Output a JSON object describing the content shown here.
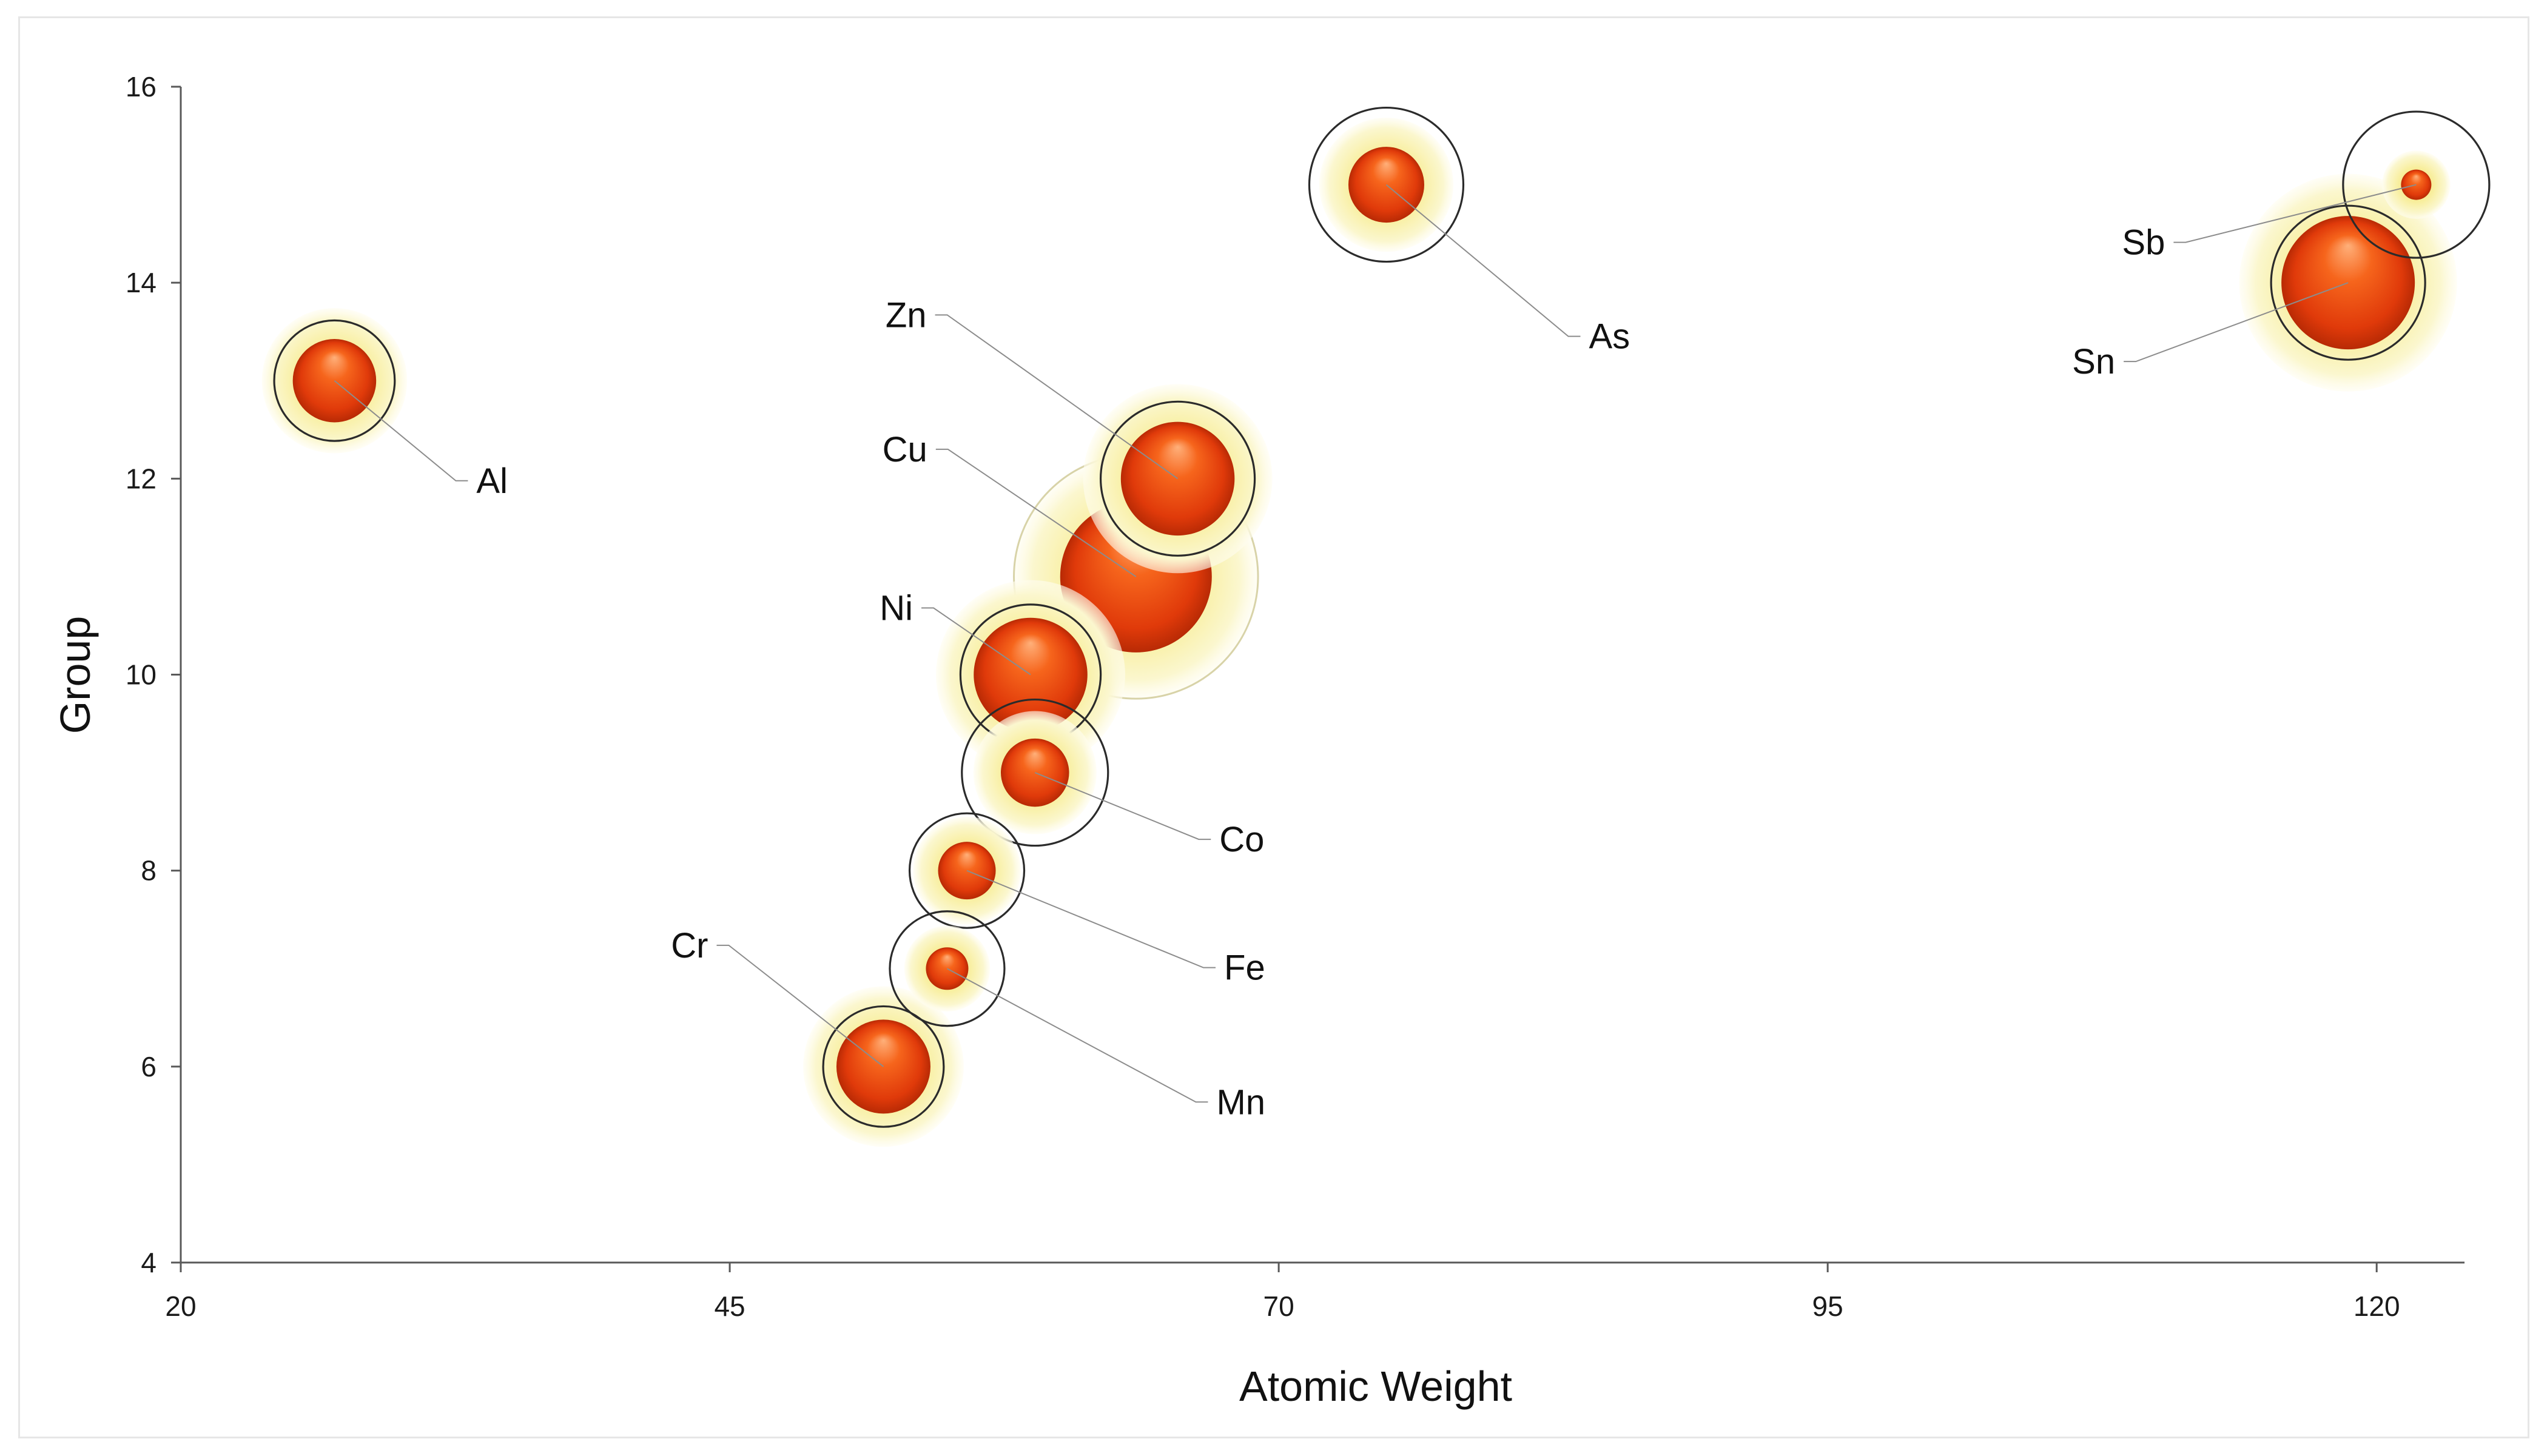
{
  "chart_data": {
    "type": "bubble",
    "title": "",
    "xlabel": "Atomic Weight",
    "ylabel": "Group",
    "xlim": [
      20,
      124
    ],
    "ylim": [
      4,
      16
    ],
    "xticks": [
      20,
      45,
      70,
      95,
      120
    ],
    "yticks": [
      4,
      6,
      8,
      10,
      12,
      14,
      16
    ],
    "grid": false,
    "legend": "none",
    "colors": {
      "sphere": "#e8400c",
      "halo": "#f7f1a0",
      "ring": "#2b2b2b",
      "leader": "#8c8c8c"
    },
    "points": [
      {
        "label": "Al",
        "x": 27.0,
        "y": 13,
        "size": 0.55,
        "ring": 0.55,
        "ringed": true
      },
      {
        "label": "Cr",
        "x": 52.0,
        "y": 6,
        "size": 0.62,
        "ring": 0.55,
        "ringed": true
      },
      {
        "label": "Mn",
        "x": 54.9,
        "y": 7,
        "size": 0.28,
        "ring": 0.52,
        "ringed": true
      },
      {
        "label": "Fe",
        "x": 55.8,
        "y": 8,
        "size": 0.38,
        "ring": 0.52,
        "ringed": true
      },
      {
        "label": "Co",
        "x": 58.9,
        "y": 9,
        "size": 0.45,
        "ring": 0.68,
        "ringed": true
      },
      {
        "label": "Ni",
        "x": 58.7,
        "y": 10,
        "size": 0.75,
        "ring": 0.65,
        "ringed": true
      },
      {
        "label": "Cu",
        "x": 63.5,
        "y": 11,
        "size": 1.0,
        "ring": 0.75,
        "ringed": false
      },
      {
        "label": "Zn",
        "x": 65.4,
        "y": 12,
        "size": 0.75,
        "ring": 0.72,
        "ringed": true
      },
      {
        "label": "As",
        "x": 74.9,
        "y": 15,
        "size": 0.5,
        "ring": 0.72,
        "ringed": true
      },
      {
        "label": "Sn",
        "x": 118.7,
        "y": 14,
        "size": 0.88,
        "ring": 0.72,
        "ringed": true
      },
      {
        "label": "Sb",
        "x": 121.8,
        "y": 15,
        "size": 0.2,
        "ring": 0.68,
        "ringed": true
      }
    ]
  }
}
